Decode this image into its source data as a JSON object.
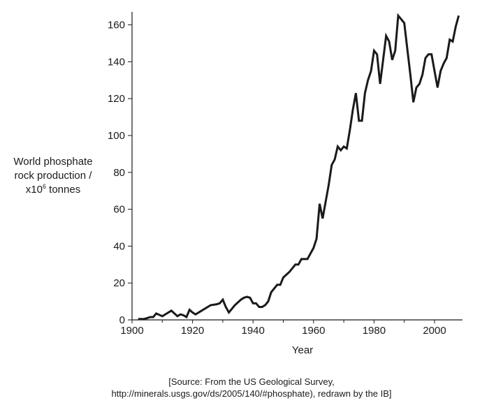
{
  "chart_data": {
    "type": "line",
    "title": "",
    "xlabel": "Year",
    "ylabel_lines": [
      "World phosphate",
      "rock production /",
      "x10",
      "6",
      " tonnes"
    ],
    "xlim": [
      1900,
      2010
    ],
    "ylim": [
      0,
      168
    ],
    "x_ticks": [
      1900,
      1920,
      1940,
      1960,
      1980,
      2000
    ],
    "x_minor_ticks": [
      1910,
      1930,
      1950,
      1970,
      1990
    ],
    "y_ticks": [
      0,
      20,
      40,
      60,
      80,
      100,
      120,
      140,
      160
    ],
    "grid": false,
    "series": [
      {
        "color": "#1a1a1a",
        "points": [
          [
            1902,
            0.5
          ],
          [
            1904,
            0.5
          ],
          [
            1905,
            1
          ],
          [
            1906,
            1.5
          ],
          [
            1907,
            1.5
          ],
          [
            1908,
            3.5
          ],
          [
            1910,
            2
          ],
          [
            1911,
            3
          ],
          [
            1913,
            5
          ],
          [
            1915,
            2
          ],
          [
            1916,
            3
          ],
          [
            1917,
            2.5
          ],
          [
            1918,
            1.5
          ],
          [
            1919,
            5.5
          ],
          [
            1920,
            4
          ],
          [
            1921,
            3
          ],
          [
            1923,
            5
          ],
          [
            1925,
            7
          ],
          [
            1926,
            8
          ],
          [
            1928,
            8.5
          ],
          [
            1929,
            9
          ],
          [
            1930,
            11
          ],
          [
            1931,
            7
          ],
          [
            1932,
            4
          ],
          [
            1933,
            6
          ],
          [
            1934,
            8
          ],
          [
            1936,
            11
          ],
          [
            1937,
            12
          ],
          [
            1938,
            12.5
          ],
          [
            1939,
            12
          ],
          [
            1940,
            9
          ],
          [
            1941,
            9
          ],
          [
            1942,
            7
          ],
          [
            1943,
            7
          ],
          [
            1944,
            8
          ],
          [
            1945,
            10
          ],
          [
            1946,
            15
          ],
          [
            1947,
            17
          ],
          [
            1948,
            19
          ],
          [
            1949,
            19
          ],
          [
            1950,
            23
          ],
          [
            1952,
            26
          ],
          [
            1953,
            28
          ],
          [
            1954,
            30
          ],
          [
            1955,
            30
          ],
          [
            1956,
            33
          ],
          [
            1957,
            33
          ],
          [
            1958,
            33
          ],
          [
            1960,
            39
          ],
          [
            1961,
            44
          ],
          [
            1962,
            63
          ],
          [
            1963,
            55
          ],
          [
            1964,
            64
          ],
          [
            1965,
            73
          ],
          [
            1966,
            84
          ],
          [
            1967,
            87
          ],
          [
            1968,
            94
          ],
          [
            1969,
            92
          ],
          [
            1970,
            94
          ],
          [
            1971,
            93
          ],
          [
            1972,
            103
          ],
          [
            1973,
            114
          ],
          [
            1974,
            123
          ],
          [
            1975,
            108
          ],
          [
            1976,
            108
          ],
          [
            1977,
            123
          ],
          [
            1978,
            130
          ],
          [
            1979,
            135
          ],
          [
            1980,
            146
          ],
          [
            1981,
            144
          ],
          [
            1982,
            128
          ],
          [
            1983,
            141
          ],
          [
            1984,
            154
          ],
          [
            1985,
            151
          ],
          [
            1986,
            141
          ],
          [
            1987,
            146
          ],
          [
            1988,
            165
          ],
          [
            1989,
            163
          ],
          [
            1990,
            161
          ],
          [
            1991,
            147
          ],
          [
            1992,
            133
          ],
          [
            1993,
            118
          ],
          [
            1994,
            126
          ],
          [
            1995,
            128
          ],
          [
            1996,
            133
          ],
          [
            1997,
            142
          ],
          [
            1998,
            144
          ],
          [
            1999,
            144
          ],
          [
            2000,
            135
          ],
          [
            2001,
            126
          ],
          [
            2002,
            135
          ],
          [
            2003,
            139
          ],
          [
            2004,
            142
          ],
          [
            2005,
            152
          ],
          [
            2006,
            151
          ],
          [
            2007,
            159
          ],
          [
            2008,
            165
          ]
        ]
      }
    ]
  },
  "source": {
    "line1": "[Source: From the US Geological Survey,",
    "line2": "http://minerals.usgs.gov/ds/2005/140/#phosphate), redrawn by the IB]"
  }
}
